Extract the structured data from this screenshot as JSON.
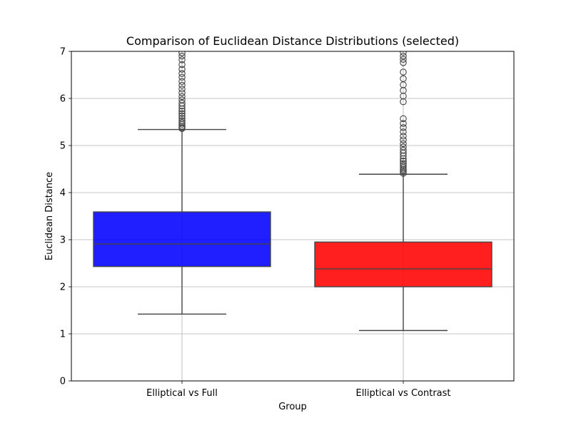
{
  "chart_data": {
    "type": "boxplot",
    "title": "Comparison of Euclidean Distance Distributions (selected)",
    "xlabel": "Group",
    "ylabel": "Euclidean Distance",
    "ylim": [
      0,
      7
    ],
    "yticks": [
      0,
      1,
      2,
      3,
      4,
      5,
      6,
      7
    ],
    "grid": true,
    "categories": [
      "Elliptical vs Full",
      "Elliptical vs Contrast"
    ],
    "boxes": [
      {
        "label": "Elliptical vs Full",
        "color": "#0000ff",
        "whisker_low": 1.42,
        "q1": 2.43,
        "median": 2.91,
        "q3": 3.59,
        "whisker_high": 5.34,
        "outliers": [
          5.36,
          5.38,
          5.41,
          5.45,
          5.49,
          5.53,
          5.58,
          5.63,
          5.68,
          5.73,
          5.78,
          5.84,
          5.9,
          5.97,
          6.04,
          6.12,
          6.2,
          6.28,
          6.36,
          6.45,
          6.53,
          6.62,
          6.72,
          6.82,
          6.9,
          6.97
        ]
      },
      {
        "label": "Elliptical vs Contrast",
        "color": "#ff0000",
        "whisker_low": 1.07,
        "q1": 2.0,
        "median": 2.38,
        "q3": 2.95,
        "whisker_high": 4.39,
        "outliers": [
          4.41,
          4.44,
          4.47,
          4.5,
          4.54,
          4.58,
          4.62,
          4.67,
          4.72,
          4.78,
          4.84,
          4.9,
          4.97,
          5.04,
          5.12,
          5.2,
          5.29,
          5.38,
          5.47,
          5.57,
          5.93,
          6.05,
          6.17,
          6.29,
          6.42,
          6.56,
          6.76,
          6.83,
          6.9,
          6.98
        ]
      }
    ]
  }
}
